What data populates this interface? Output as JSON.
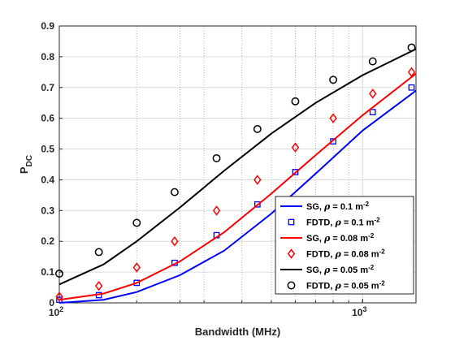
{
  "chart_data": {
    "type": "line",
    "xlabel": "Bandwidth (MHz)",
    "ylabel": {
      "main": "P",
      "sub": "DC"
    },
    "xscale": "log",
    "xlim": [
      100,
      1500
    ],
    "ylim": [
      0,
      0.9
    ],
    "yticks": [
      0,
      0.1,
      0.2,
      0.3,
      0.4,
      0.5,
      0.6,
      0.7,
      0.8,
      0.9
    ],
    "xticks_major": [
      {
        "value": 100,
        "base": "10",
        "exp": "2"
      },
      {
        "value": 1000,
        "base": "10",
        "exp": "3"
      }
    ],
    "xgrid_minor": [
      180,
      250,
      300,
      400,
      500,
      600,
      700,
      800,
      900,
      1000
    ],
    "grid": true,
    "legend_position": "bottom-right",
    "legend": [
      {
        "label_pre": "SG, ",
        "rho": "ρ",
        "label_mid": " = 0.1 m",
        "sup": "-2"
      },
      {
        "label_pre": "FDTD, ",
        "rho": "ρ",
        "label_mid": " = 0.1 m",
        "sup": "-2"
      },
      {
        "label_pre": "SG, ",
        "rho": "ρ",
        "label_mid": " = 0.08 m",
        "sup": "-2"
      },
      {
        "label_pre": "FDTD, ",
        "rho": "ρ",
        "label_mid": " = 0.08 m",
        "sup": "-2"
      },
      {
        "label_pre": "SG, ",
        "rho": "ρ",
        "label_mid": " = 0.05 m",
        "sup": "-2"
      },
      {
        "label_pre": "FDTD, ",
        "rho": "ρ",
        "label_mid": " = 0.05 m",
        "sup": "-2"
      }
    ],
    "series": [
      {
        "kind": "line",
        "marker": "none",
        "color": "#0000ff",
        "x": [
          100,
          140,
          180,
          250,
          350,
          500,
          700,
          1000,
          1500
        ],
        "y": [
          0.0,
          0.01,
          0.035,
          0.09,
          0.17,
          0.29,
          0.42,
          0.56,
          0.69
        ]
      },
      {
        "kind": "marker",
        "marker": "square",
        "color": "#0000ff",
        "x": [
          100,
          135,
          180,
          240,
          330,
          450,
          600,
          800,
          1080,
          1450
        ],
        "y": [
          0.01,
          0.025,
          0.065,
          0.13,
          0.22,
          0.32,
          0.425,
          0.525,
          0.62,
          0.7
        ]
      },
      {
        "kind": "line",
        "marker": "none",
        "color": "#ff0000",
        "x": [
          100,
          140,
          180,
          250,
          350,
          500,
          700,
          1000,
          1500
        ],
        "y": [
          0.01,
          0.03,
          0.065,
          0.135,
          0.23,
          0.355,
          0.48,
          0.61,
          0.745
        ]
      },
      {
        "kind": "marker",
        "marker": "diamond",
        "color": "#ff0000",
        "x": [
          100,
          135,
          180,
          240,
          330,
          450,
          600,
          800,
          1080,
          1450
        ],
        "y": [
          0.02,
          0.055,
          0.115,
          0.2,
          0.3,
          0.4,
          0.505,
          0.6,
          0.68,
          0.75
        ]
      },
      {
        "kind": "line",
        "marker": "none",
        "color": "#000000",
        "x": [
          100,
          140,
          180,
          250,
          350,
          500,
          700,
          1000,
          1500
        ],
        "y": [
          0.06,
          0.125,
          0.2,
          0.31,
          0.43,
          0.55,
          0.65,
          0.74,
          0.825
        ]
      },
      {
        "kind": "marker",
        "marker": "circle",
        "color": "#000000",
        "x": [
          100,
          135,
          180,
          240,
          330,
          450,
          600,
          800,
          1080,
          1450
        ],
        "y": [
          0.095,
          0.165,
          0.26,
          0.36,
          0.47,
          0.565,
          0.655,
          0.725,
          0.785,
          0.83
        ]
      }
    ]
  }
}
